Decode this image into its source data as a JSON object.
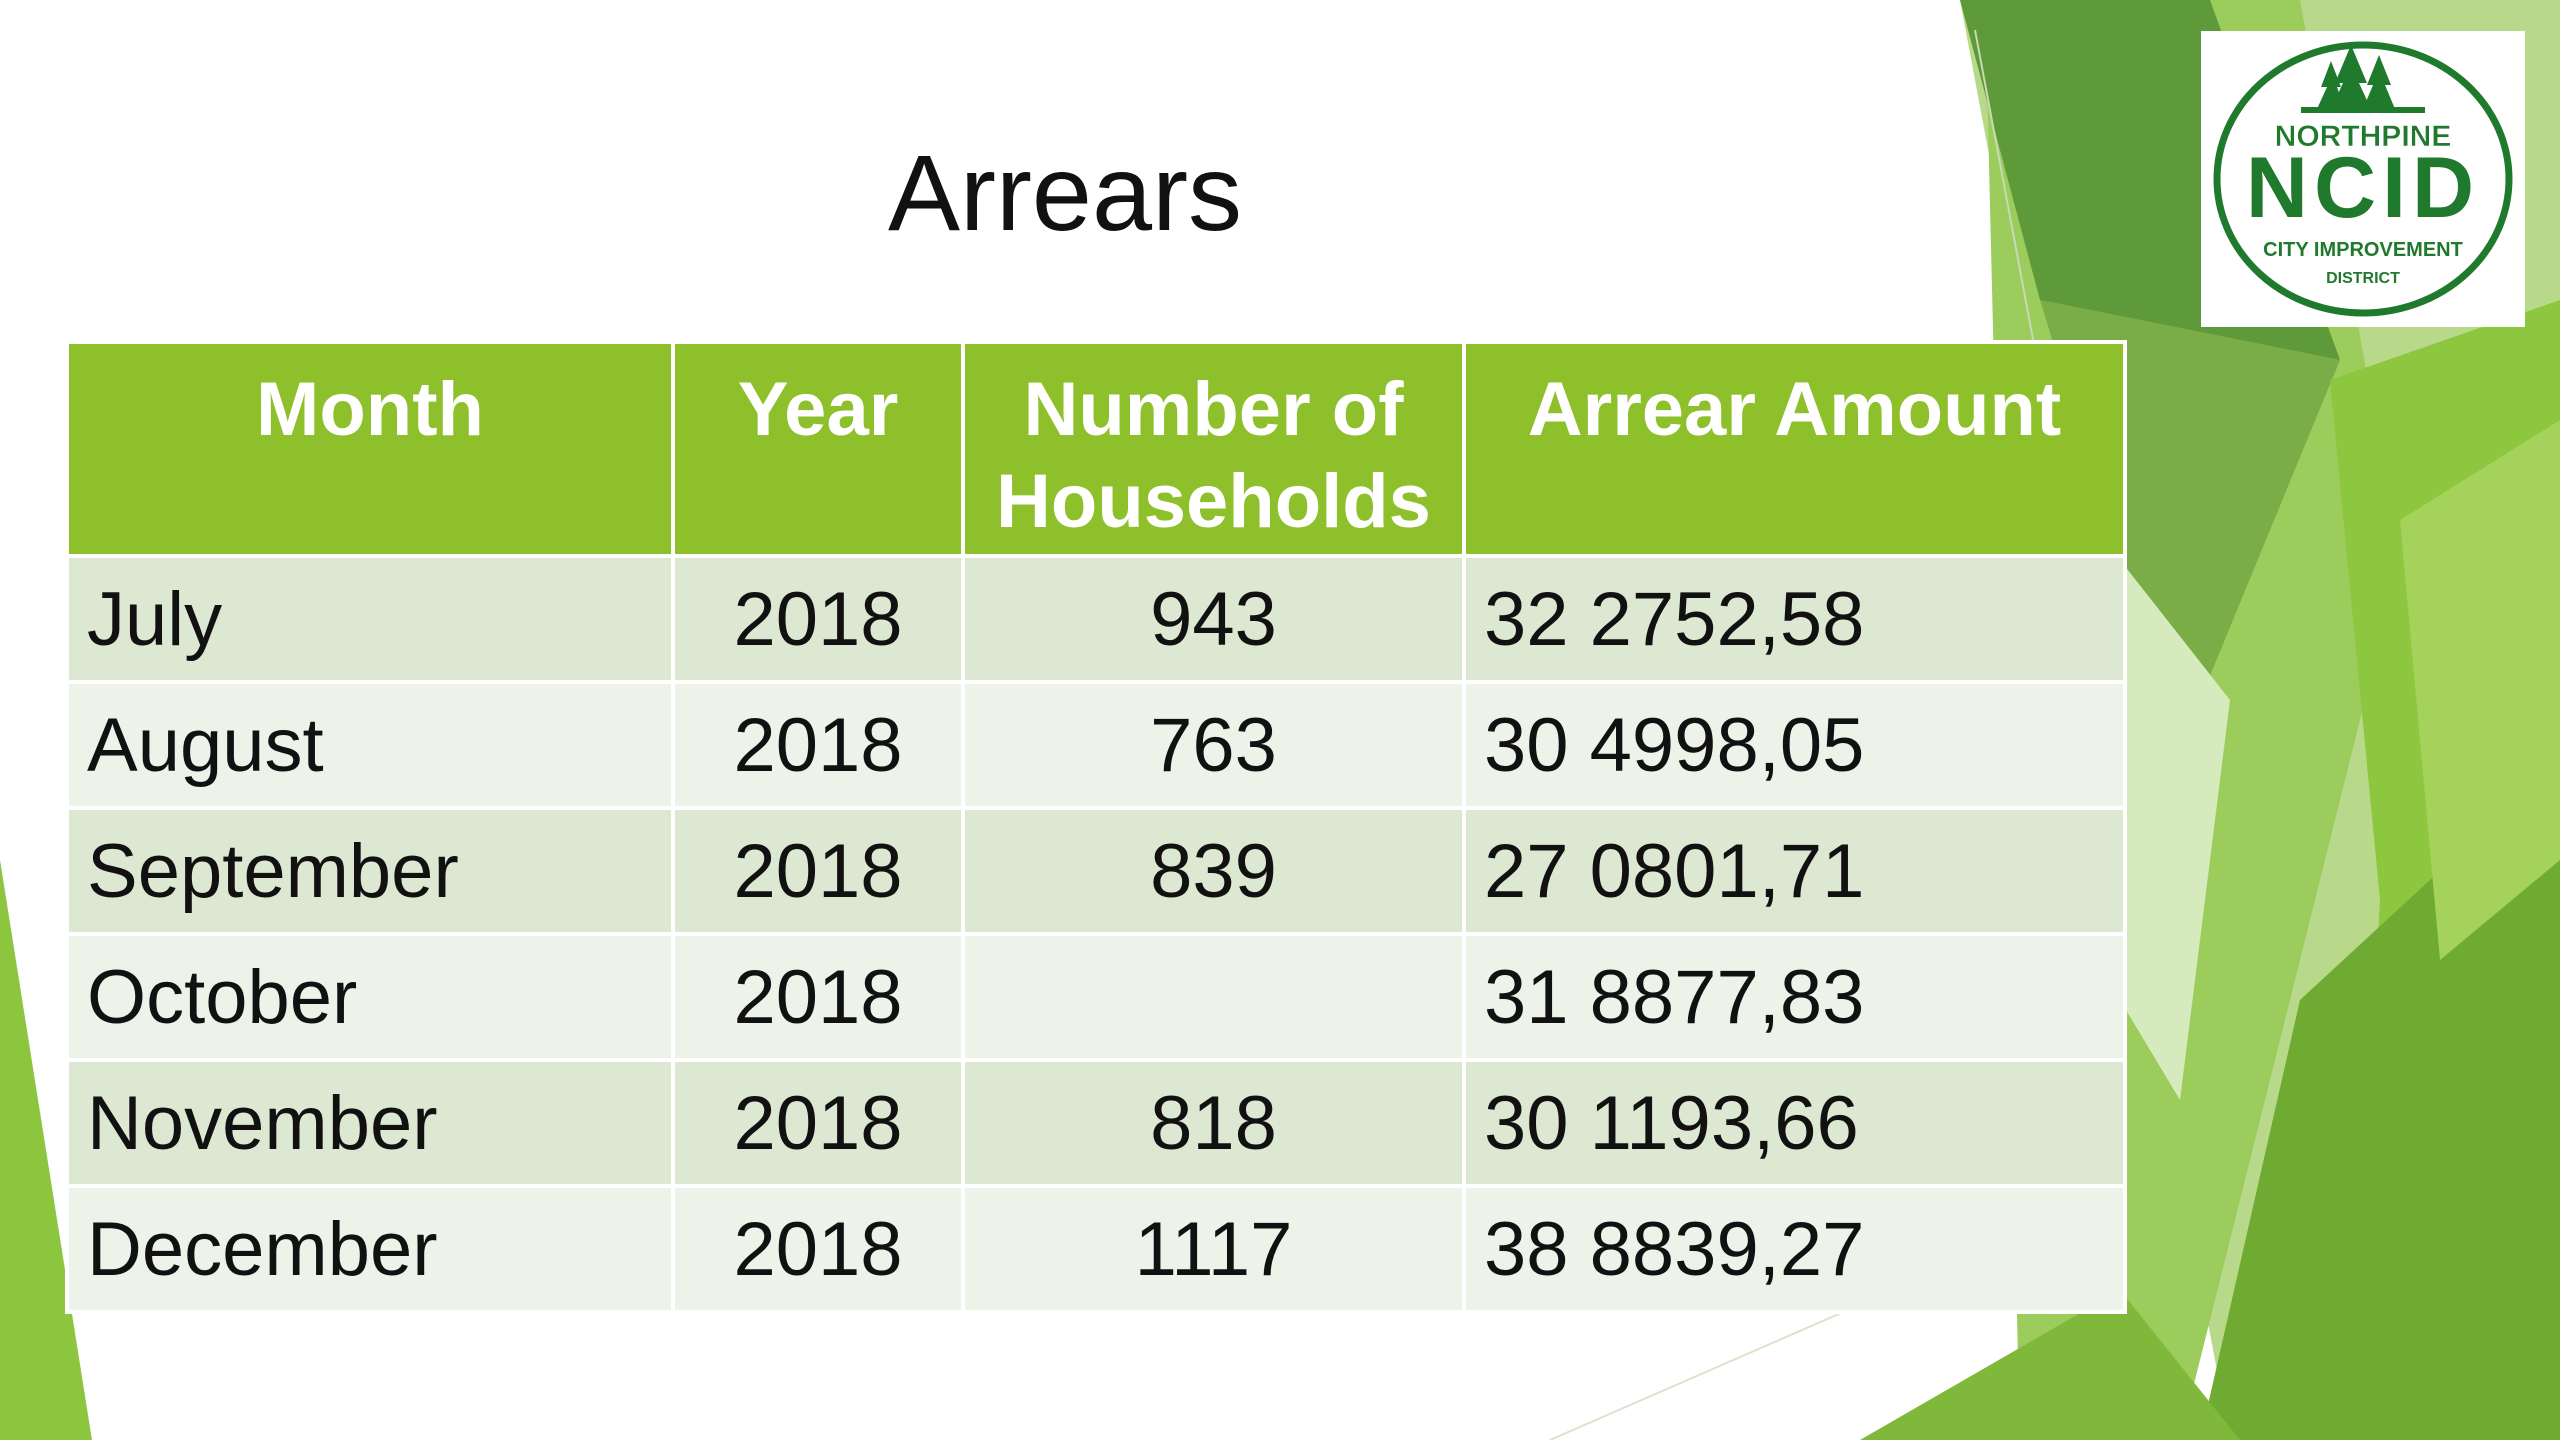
{
  "slide": {
    "title": "Arrears"
  },
  "logo": {
    "line1": "NORTHPINE",
    "line2": "NCID",
    "line3": "CITY IMPROVEMENT",
    "line4": "DISTRICT"
  },
  "colors": {
    "header_bg": "#8dc02b",
    "row_dark": "#dce8d1",
    "row_light": "#eef3ea",
    "accent_green": "#76b82a",
    "logo_green": "#1f7a2e"
  },
  "table": {
    "columns": [
      "Month",
      "Year",
      "Number of Households",
      "Arrear Amount"
    ],
    "rows": [
      {
        "month": "July",
        "year": "2018",
        "households": "943",
        "amount": "32 2752,58"
      },
      {
        "month": "August",
        "year": "2018",
        "households": "763",
        "amount": "30 4998,05"
      },
      {
        "month": "September",
        "year": "2018",
        "households": "839",
        "amount": "27 0801,71"
      },
      {
        "month": "October",
        "year": "2018",
        "households": "",
        "amount": "31 8877,83"
      },
      {
        "month": "November",
        "year": "2018",
        "households": "818",
        "amount": "30 1193,66"
      },
      {
        "month": "December",
        "year": "2018",
        "households": "1117",
        "amount": "38 8839,27"
      }
    ]
  }
}
